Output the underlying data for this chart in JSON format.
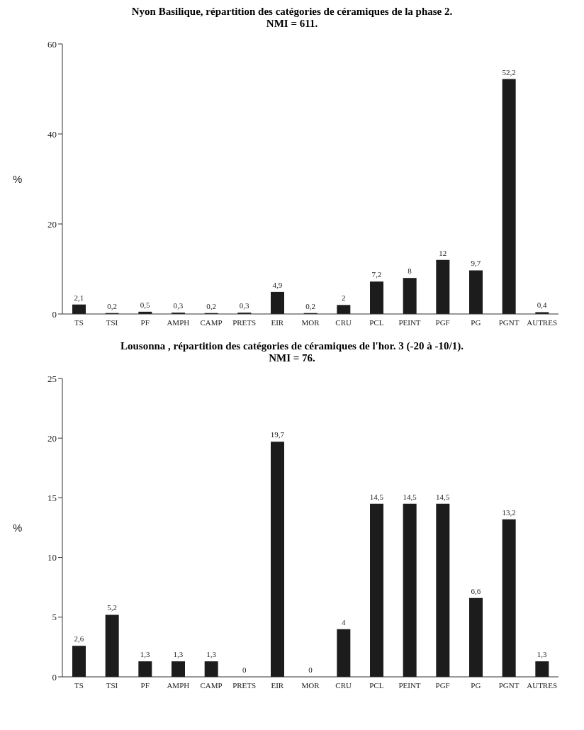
{
  "chart_data": [
    {
      "type": "bar",
      "title": "Nyon Basilique, répartition des catégories de céramiques de la phase 2.",
      "subtitle": "NMI = 611.",
      "ylabel": "%",
      "categories": [
        "TS",
        "TSI",
        "PF",
        "AMPH",
        "CAMP",
        "PRETS",
        "EIR",
        "MOR",
        "CRU",
        "PCL",
        "PEINT",
        "PGF",
        "PG",
        "PGNT",
        "AUTRES"
      ],
      "values": [
        2.1,
        0.2,
        0.5,
        0.3,
        0.2,
        0.3,
        4.9,
        0.2,
        2,
        7.2,
        8,
        12,
        9.7,
        52.2,
        0.4
      ],
      "value_labels": [
        "2,1",
        "0,2",
        "0,5",
        "0,3",
        "0,2",
        "0,3",
        "4,9",
        "0,2",
        "2",
        "7,2",
        "8",
        "12",
        "9,7",
        "52,2",
        "0,4"
      ],
      "color": "#1c1c1c",
      "ylim": [
        0,
        60
      ],
      "yticks": [
        0,
        20,
        40,
        60
      ]
    },
    {
      "type": "bar",
      "title": "Lousonna , répartition des catégories de céramiques de l'hor. 3  (-20 à -10/1).",
      "subtitle": "NMI = 76.",
      "ylabel": "%",
      "categories": [
        "TS",
        "TSI",
        "PF",
        "AMPH",
        "CAMP",
        "PRETS",
        "EIR",
        "MOR",
        "CRU",
        "PCL",
        "PEINT",
        "PGF",
        "PG",
        "PGNT",
        "AUTRES"
      ],
      "values": [
        2.6,
        5.2,
        1.3,
        1.3,
        1.3,
        0,
        19.7,
        0,
        4,
        14.5,
        14.5,
        14.5,
        6.6,
        13.2,
        1.3
      ],
      "value_labels": [
        "2,6",
        "5,2",
        "1,3",
        "1,3",
        "1,3",
        "0",
        "19,7",
        "0",
        "4",
        "14,5",
        "14,5",
        "14,5",
        "6,6",
        "13,2",
        "1,3"
      ],
      "color": "#1c1c1c",
      "ylim": [
        0,
        25
      ],
      "yticks": [
        0,
        5,
        10,
        15,
        20,
        25
      ]
    }
  ]
}
